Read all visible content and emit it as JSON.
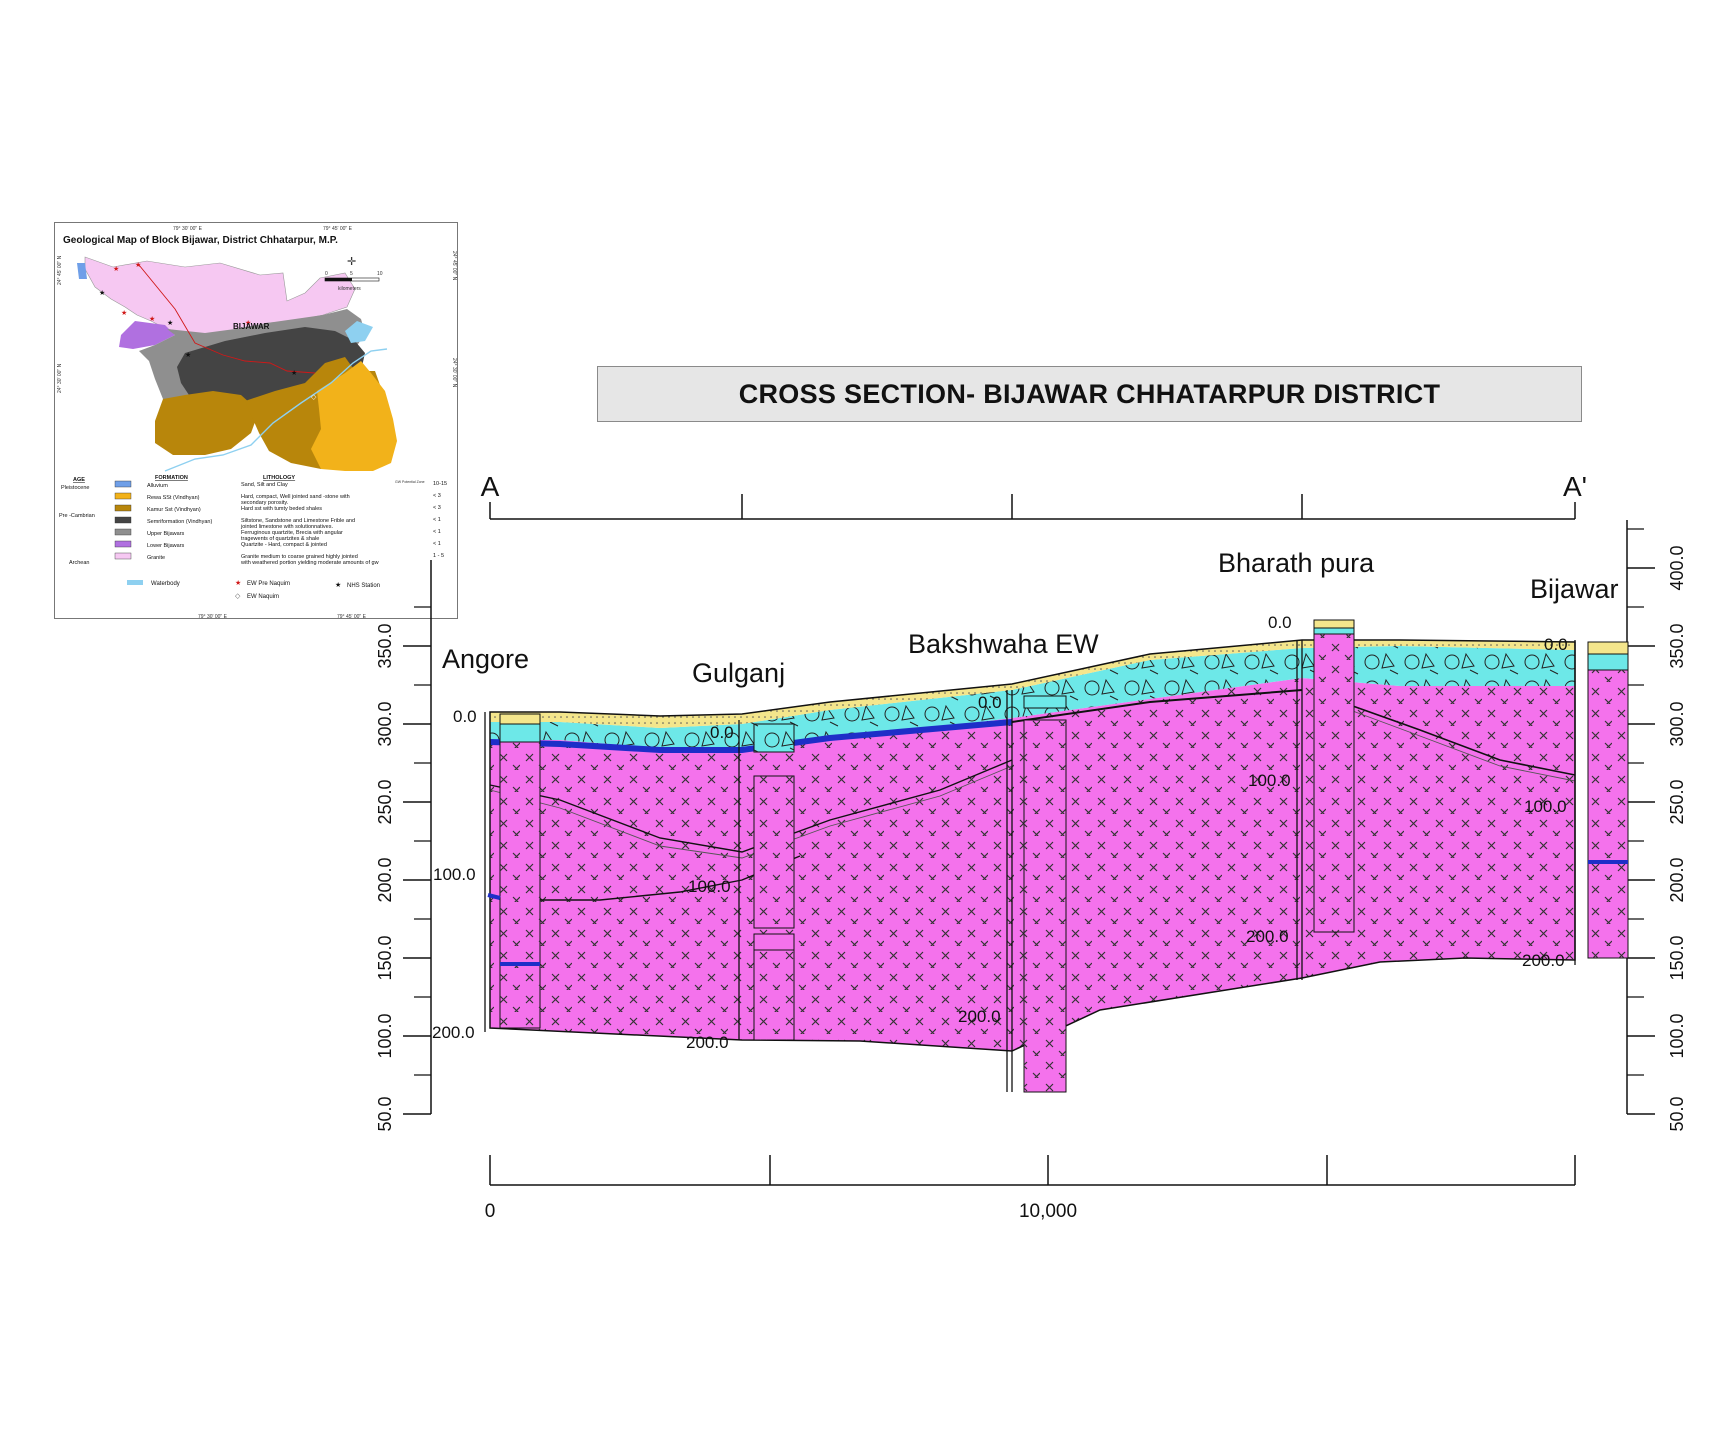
{
  "title": "CROSS SECTION- BIJAWAR CHHATARPUR DISTRICT",
  "map": {
    "title": "Geological Map of Block Bijawar, District Chhatarpur, M.P.",
    "coords": {
      "top_left": "79° 30' 00\" E",
      "top_right": "79° 45' 00\" E",
      "bottom_left": "79° 30' 00\" E",
      "bottom_right": "79° 45' 00\" E",
      "left_top": "24° 45' 00\" N",
      "left_mid": "24° 30' 00\" N",
      "right_top": "24° 45' 00\" N",
      "right_mid": "24° 30' 00\" N"
    },
    "scale": {
      "ticks": [
        "0",
        "5",
        "10"
      ],
      "unit": "kilometers"
    },
    "town_label": "BIJAWAR",
    "credit": "GW Potential Zone",
    "legend": {
      "headers": {
        "age": "AGE",
        "formation": "FORMATION",
        "lithology": "LITHOLOGY"
      },
      "ages": [
        "Pleistocene",
        "Pre -Cambrian",
        "Archean"
      ],
      "rows": [
        {
          "formation": "Alluvium",
          "lithology": "Sand, Silt and Clay",
          "yield": "10-15",
          "color": "#6f9fe8"
        },
        {
          "formation": "Rewa SSt (Vindhyan)",
          "lithology": "Hard, compact, Well jointed sand -stone with secondary porosity.",
          "yield": "< 3",
          "color": "#f2b21a"
        },
        {
          "formation": "Kamur Sst (Vindhyan)",
          "lithology": "Hard sst with tumty beded shales",
          "yield": "< 3",
          "color": "#b8860b"
        },
        {
          "formation": "Semriformation (Vindhyan)",
          "lithology": "Siltstone, Sandstone and Limestone Frible and jointed limestone with solutionnatives.",
          "yield": "< 1",
          "color": "#444444"
        },
        {
          "formation": "Upper Bijawars",
          "lithology": "Ferruginous quartzite, Brecia with angular tragewents of quartzites & shale",
          "yield": "< 1",
          "color": "#8f8f8f"
        },
        {
          "formation": "Lower Bijawars",
          "lithology": "Quartzite - Hard, compact & jointed",
          "yield": "< 1",
          "color": "#b070e0"
        },
        {
          "formation": "Granite",
          "lithology": "Granite medium to coarse grained highly jointed with weathered portion yielding moderate amounts of gw",
          "yield": "1 - 5",
          "color": "#f6c8f2"
        }
      ],
      "symbols": [
        {
          "label": "Waterbody",
          "icon": "waterbody-swatch",
          "color": "#8ed0f0"
        },
        {
          "label": "EW Pre Naquim",
          "icon": "red-star-icon",
          "color": "#d01818"
        },
        {
          "label": "NHS Station",
          "icon": "black-star-icon",
          "color": "#111111"
        },
        {
          "label": "EW Naquim",
          "icon": "diamond-outline-icon",
          "color": "#555555"
        }
      ]
    }
  },
  "section": {
    "end_left": "A",
    "end_right": "A'",
    "x_axis": {
      "tick_labels": [
        "0",
        "10,000"
      ]
    },
    "y_axis": {
      "range": [
        50,
        400
      ],
      "step": 50,
      "tick_labels": [
        "50.0",
        "100.0",
        "150.0",
        "200.0",
        "250.0",
        "300.0",
        "350.0",
        "400.0"
      ]
    },
    "wells": [
      {
        "name": "Angore",
        "depth_labels": [
          "0.0",
          "100.0",
          "200.0"
        ]
      },
      {
        "name": "Gulganj",
        "depth_labels": [
          "0.0",
          "100.0",
          "200.0"
        ]
      },
      {
        "name": "Bakshwaha EW",
        "depth_labels": [
          "0.0",
          "200.0"
        ]
      },
      {
        "name": "Bharath pura",
        "depth_labels": [
          "0.0",
          "100.0",
          "200.0"
        ]
      },
      {
        "name": "Bijawar",
        "depth_labels": [
          "0.0",
          "100.0",
          "200.0"
        ]
      }
    ],
    "colors": {
      "granite": "#f472ec",
      "sandstone": "#6de8e8",
      "topsoil": "#f4e68c",
      "aquifer": "#1e2ec8",
      "outline": "#111111"
    }
  }
}
